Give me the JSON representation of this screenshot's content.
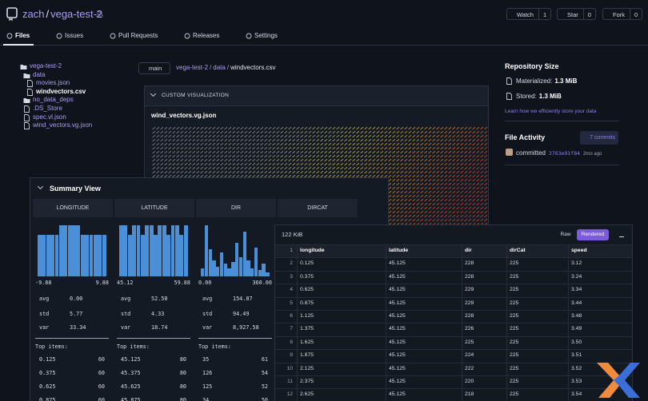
{
  "header": {
    "owner": "zach",
    "separator": "/",
    "repo": "vega-test-2",
    "buttons": [
      {
        "label": "Watch",
        "count": "1"
      },
      {
        "label": "Star",
        "count": "0"
      },
      {
        "label": "Fork",
        "count": "0"
      }
    ]
  },
  "tabs": [
    "Files",
    "Issues",
    "Pull Requests",
    "Releases",
    "Settings"
  ],
  "file_tree": {
    "root": "vega-test-2",
    "folders": [
      {
        "name": "data",
        "files": [
          "movies.json",
          "windvectors.csv"
        ]
      },
      {
        "name": "no_data_deps",
        "files": []
      }
    ],
    "files": [
      ".DS_Store",
      "spec.vl.json",
      "wind_vectors.vg.json"
    ]
  },
  "breadcrumb": {
    "branch": "main",
    "path": [
      "vega-test-2",
      "data",
      "windvectors.csv"
    ]
  },
  "visualization": {
    "heading": "CUSTOM VISUALIZATION",
    "file": "wind_vectors.vg.json"
  },
  "sidebar": {
    "size_title": "Repository Size",
    "materialized_label": "Materialized:",
    "materialized": "1.3 MiB",
    "stored_label": "Stored:",
    "stored": "1.3 MiB",
    "link": "Learn how we efficiently store your data",
    "activity_title": "File Activity",
    "commits": "7 commits",
    "action": "committed",
    "hash": "3763e91f84",
    "time": "2mo ago"
  },
  "summary": {
    "title": "Summary View",
    "top_label": "Top items:",
    "stat_names": [
      "avg",
      "std",
      "var"
    ],
    "columns": [
      {
        "name": "LONGITUDE",
        "histogram": [
          52,
          52,
          52,
          52,
          52,
          64,
          64,
          64,
          64,
          64,
          52,
          52,
          52,
          52,
          52,
          52
        ],
        "min": "-9.88",
        "max": "9.88",
        "stats": [
          "0.00",
          "5.77",
          "33.34"
        ],
        "top": [
          [
            "0.125",
            "60"
          ],
          [
            "0.375",
            "60"
          ],
          [
            "0.625",
            "60"
          ],
          [
            "0.875",
            "60"
          ]
        ]
      },
      {
        "name": "LATITUDE",
        "histogram": [
          64,
          64,
          52,
          64,
          64,
          52,
          64,
          64,
          52,
          64,
          64,
          52,
          64,
          64,
          52,
          64
        ],
        "min": "45.12",
        "max": "59.88",
        "stats": [
          "52.50",
          "4.33",
          "18.74"
        ],
        "top": [
          [
            "45.125",
            "80"
          ],
          [
            "45.375",
            "80"
          ],
          [
            "45.625",
            "80"
          ],
          [
            "45.875",
            "80"
          ]
        ]
      },
      {
        "name": "DIR",
        "histogram": [
          10,
          64,
          34,
          20,
          12,
          30,
          16,
          10,
          18,
          42,
          24,
          56,
          20,
          10,
          36,
          8,
          16,
          5
        ],
        "min": "0.00",
        "max": "360.00",
        "stats": [
          "154.87",
          "94.49",
          "8,927.58"
        ],
        "top": [
          [
            "35",
            "61"
          ],
          [
            "126",
            "54"
          ],
          [
            "125",
            "52"
          ],
          [
            "34",
            "50"
          ]
        ]
      },
      {
        "name": "DIRCAT"
      }
    ]
  },
  "table": {
    "size": "122 KiB",
    "modes": [
      "Raw",
      "Rendered"
    ],
    "rows": [
      [
        "1",
        "longitude",
        "latitude",
        "dir",
        "dirCat",
        "speed"
      ],
      [
        "2",
        "0.125",
        "45.125",
        "228",
        "225",
        "3.12"
      ],
      [
        "3",
        "0.375",
        "45.125",
        "228",
        "225",
        "3.24"
      ],
      [
        "4",
        "0.625",
        "45.125",
        "229",
        "225",
        "3.34"
      ],
      [
        "5",
        "0.875",
        "45.125",
        "229",
        "225",
        "3.44"
      ],
      [
        "6",
        "1.125",
        "45.125",
        "228",
        "225",
        "3.48"
      ],
      [
        "7",
        "1.375",
        "45.125",
        "226",
        "225",
        "3.49"
      ],
      [
        "8",
        "1.625",
        "45.125",
        "225",
        "225",
        "3.50"
      ],
      [
        "9",
        "1.875",
        "45.125",
        "224",
        "225",
        "3.51"
      ],
      [
        "10",
        "2.125",
        "45.125",
        "222",
        "225",
        "3.52"
      ],
      [
        "11",
        "2.375",
        "45.125",
        "220",
        "225",
        "3.53"
      ],
      [
        "12",
        "2.625",
        "45.125",
        "218",
        "225",
        "3.54"
      ]
    ]
  }
}
